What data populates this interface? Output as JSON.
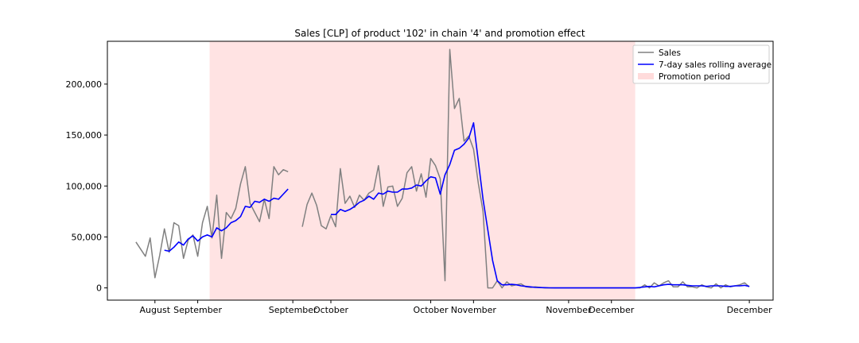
{
  "chart_data": {
    "type": "line",
    "title": "Sales [CLP] of product '102' in chain '4' and promotion effect",
    "xlabel": "",
    "ylabel": "",
    "ylim": [
      -12000,
      242000
    ],
    "xlim": [
      -5,
      135
    ],
    "y_ticks": [
      0,
      50000,
      100000,
      150000,
      200000
    ],
    "y_tick_labels": [
      "0",
      "50,000",
      "100,000",
      "150,000",
      "200,000"
    ],
    "x_ticks": [
      {
        "x": 5,
        "label": "August"
      },
      {
        "x": 14,
        "label": "September"
      },
      {
        "x": 34,
        "label": "September"
      },
      {
        "x": 42,
        "label": "October"
      },
      {
        "x": 63,
        "label": "October"
      },
      {
        "x": 72,
        "label": "November"
      },
      {
        "x": 92,
        "label": "November"
      },
      {
        "x": 101,
        "label": "December"
      },
      {
        "x": 130,
        "label": "December"
      }
    ],
    "grid": false,
    "legend_position": "top-right",
    "promotion_period": {
      "start": 16.5,
      "end": 106,
      "label": "Promotion period",
      "color": "#ffcccc"
    },
    "series": [
      {
        "name": "Sales",
        "color": "#808080",
        "values": [
          [
            1,
            45000
          ],
          [
            3,
            31000
          ],
          [
            4,
            49000
          ],
          [
            5,
            10000
          ],
          [
            6,
            32000
          ],
          [
            7,
            58000
          ],
          [
            8,
            35000
          ],
          [
            9,
            64000
          ],
          [
            10,
            61000
          ],
          [
            11,
            29000
          ],
          [
            12,
            47000
          ],
          [
            13,
            52000
          ],
          [
            14,
            31000
          ],
          [
            15,
            64000
          ],
          [
            16,
            80000
          ],
          [
            17,
            49000
          ],
          [
            18,
            91000
          ],
          [
            19,
            29000
          ],
          [
            20,
            74000
          ],
          [
            21,
            68000
          ],
          [
            22,
            78000
          ],
          [
            23,
            102000
          ],
          [
            24,
            119000
          ],
          [
            25,
            83000
          ],
          [
            26,
            74000
          ],
          [
            27,
            65000
          ],
          [
            28,
            87000
          ],
          [
            29,
            68000
          ],
          [
            30,
            119000
          ],
          [
            31,
            111000
          ],
          [
            32,
            116000
          ],
          [
            33,
            114000
          ],
          [
            null,
            null
          ],
          [
            36,
            60000
          ],
          [
            37,
            82000
          ],
          [
            38,
            93000
          ],
          [
            39,
            81000
          ],
          [
            40,
            61000
          ],
          [
            41,
            58000
          ],
          [
            42,
            71000
          ],
          [
            43,
            60000
          ],
          [
            44,
            117000
          ],
          [
            45,
            83000
          ],
          [
            46,
            90000
          ],
          [
            47,
            79000
          ],
          [
            48,
            91000
          ],
          [
            49,
            86000
          ],
          [
            50,
            93000
          ],
          [
            51,
            96000
          ],
          [
            52,
            120000
          ],
          [
            53,
            80000
          ],
          [
            54,
            99000
          ],
          [
            55,
            100000
          ],
          [
            56,
            80000
          ],
          [
            57,
            88000
          ],
          [
            58,
            113000
          ],
          [
            59,
            119000
          ],
          [
            60,
            95000
          ],
          [
            61,
            112000
          ],
          [
            62,
            89000
          ],
          [
            63,
            127000
          ],
          [
            64,
            120000
          ],
          [
            65,
            107000
          ],
          [
            66,
            7000
          ],
          [
            67,
            234000
          ],
          [
            68,
            176000
          ],
          [
            69,
            186000
          ],
          [
            70,
            144000
          ],
          [
            71,
            149000
          ],
          [
            72,
            136000
          ],
          [
            73,
            103000
          ],
          [
            74,
            75000
          ],
          [
            75,
            0
          ],
          [
            76,
            0
          ],
          [
            77,
            7000
          ],
          [
            78,
            0
          ],
          [
            79,
            6000
          ],
          [
            80,
            2000
          ],
          [
            81,
            3000
          ],
          [
            82,
            4000
          ],
          [
            83,
            1000
          ],
          [
            84,
            500
          ],
          [
            85,
            1000
          ],
          [
            86,
            500
          ],
          [
            87,
            0
          ],
          [
            88,
            0
          ],
          [
            89,
            0
          ],
          [
            90,
            0
          ],
          [
            91,
            0
          ],
          [
            92,
            0
          ],
          [
            93,
            0
          ],
          [
            94,
            0
          ],
          [
            95,
            0
          ],
          [
            96,
            0
          ],
          [
            97,
            0
          ],
          [
            98,
            0
          ],
          [
            99,
            0
          ],
          [
            100,
            0
          ],
          [
            101,
            0
          ],
          [
            102,
            0
          ],
          [
            103,
            0
          ],
          [
            104,
            0
          ],
          [
            105,
            0
          ],
          [
            106,
            0
          ],
          [
            107,
            0
          ],
          [
            108,
            3000
          ],
          [
            109,
            0
          ],
          [
            110,
            5000
          ],
          [
            111,
            2000
          ],
          [
            112,
            5000
          ],
          [
            113,
            7000
          ],
          [
            114,
            1000
          ],
          [
            115,
            1000
          ],
          [
            116,
            6000
          ],
          [
            117,
            1000
          ],
          [
            118,
            1000
          ],
          [
            119,
            0
          ],
          [
            120,
            3000
          ],
          [
            121,
            1000
          ],
          [
            122,
            0
          ],
          [
            123,
            4000
          ],
          [
            124,
            0
          ],
          [
            125,
            3000
          ],
          [
            126,
            1000
          ],
          [
            127,
            2000
          ],
          [
            128,
            3000
          ],
          [
            129,
            5000
          ],
          [
            130,
            1000
          ]
        ]
      },
      {
        "name": "7-day sales rolling average",
        "color": "#0000ff",
        "values": [
          [
            7,
            37000
          ],
          [
            8,
            36000
          ],
          [
            9,
            40000
          ],
          [
            10,
            45000
          ],
          [
            11,
            42000
          ],
          [
            12,
            48000
          ],
          [
            13,
            51000
          ],
          [
            14,
            46000
          ],
          [
            15,
            50000
          ],
          [
            16,
            52000
          ],
          [
            17,
            50000
          ],
          [
            18,
            59000
          ],
          [
            19,
            56000
          ],
          [
            20,
            59000
          ],
          [
            21,
            64000
          ],
          [
            22,
            66000
          ],
          [
            23,
            70000
          ],
          [
            24,
            80000
          ],
          [
            25,
            79000
          ],
          [
            26,
            85000
          ],
          [
            27,
            84000
          ],
          [
            28,
            87000
          ],
          [
            29,
            85000
          ],
          [
            30,
            88000
          ],
          [
            31,
            87000
          ],
          [
            32,
            92000
          ],
          [
            33,
            97000
          ],
          [
            null,
            null
          ],
          [
            42,
            72000
          ],
          [
            43,
            72000
          ],
          [
            44,
            77000
          ],
          [
            45,
            75000
          ],
          [
            46,
            77000
          ],
          [
            47,
            80000
          ],
          [
            48,
            84000
          ],
          [
            49,
            86000
          ],
          [
            50,
            90000
          ],
          [
            51,
            87000
          ],
          [
            52,
            93000
          ],
          [
            53,
            92000
          ],
          [
            54,
            95000
          ],
          [
            55,
            94000
          ],
          [
            56,
            94000
          ],
          [
            57,
            97000
          ],
          [
            58,
            97000
          ],
          [
            59,
            98000
          ],
          [
            60,
            101000
          ],
          [
            61,
            100000
          ],
          [
            62,
            105000
          ],
          [
            63,
            109000
          ],
          [
            64,
            108000
          ],
          [
            65,
            92000
          ],
          [
            66,
            111000
          ],
          [
            67,
            121000
          ],
          [
            68,
            135000
          ],
          [
            69,
            137000
          ],
          [
            70,
            141000
          ],
          [
            71,
            147000
          ],
          [
            72,
            162000
          ],
          [
            73,
            125000
          ],
          [
            74,
            87000
          ],
          [
            75,
            57000
          ],
          [
            76,
            27000
          ],
          [
            77,
            7000
          ],
          [
            78,
            3000
          ],
          [
            79,
            3000
          ],
          [
            80,
            3500
          ],
          [
            81,
            3000
          ],
          [
            82,
            2000
          ],
          [
            83,
            1500
          ],
          [
            84,
            1000
          ],
          [
            85,
            500
          ],
          [
            86,
            300
          ],
          [
            87,
            200
          ],
          [
            88,
            100
          ],
          [
            89,
            0
          ],
          [
            90,
            0
          ],
          [
            91,
            0
          ],
          [
            92,
            0
          ],
          [
            93,
            0
          ],
          [
            94,
            0
          ],
          [
            95,
            0
          ],
          [
            96,
            0
          ],
          [
            97,
            0
          ],
          [
            98,
            0
          ],
          [
            99,
            0
          ],
          [
            100,
            0
          ],
          [
            101,
            0
          ],
          [
            102,
            0
          ],
          [
            103,
            0
          ],
          [
            104,
            0
          ],
          [
            105,
            0
          ],
          [
            106,
            0
          ],
          [
            107,
            500
          ],
          [
            108,
            1000
          ],
          [
            109,
            1500
          ],
          [
            110,
            1000
          ],
          [
            111,
            2000
          ],
          [
            112,
            3000
          ],
          [
            113,
            3500
          ],
          [
            114,
            3000
          ],
          [
            115,
            3000
          ],
          [
            116,
            3000
          ],
          [
            117,
            2500
          ],
          [
            118,
            2000
          ],
          [
            119,
            2000
          ],
          [
            120,
            2000
          ],
          [
            121,
            1500
          ],
          [
            122,
            2000
          ],
          [
            123,
            2000
          ],
          [
            124,
            2000
          ],
          [
            125,
            1500
          ],
          [
            126,
            1500
          ],
          [
            127,
            2000
          ],
          [
            128,
            2000
          ],
          [
            129,
            2500
          ],
          [
            130,
            1500
          ]
        ]
      }
    ]
  }
}
